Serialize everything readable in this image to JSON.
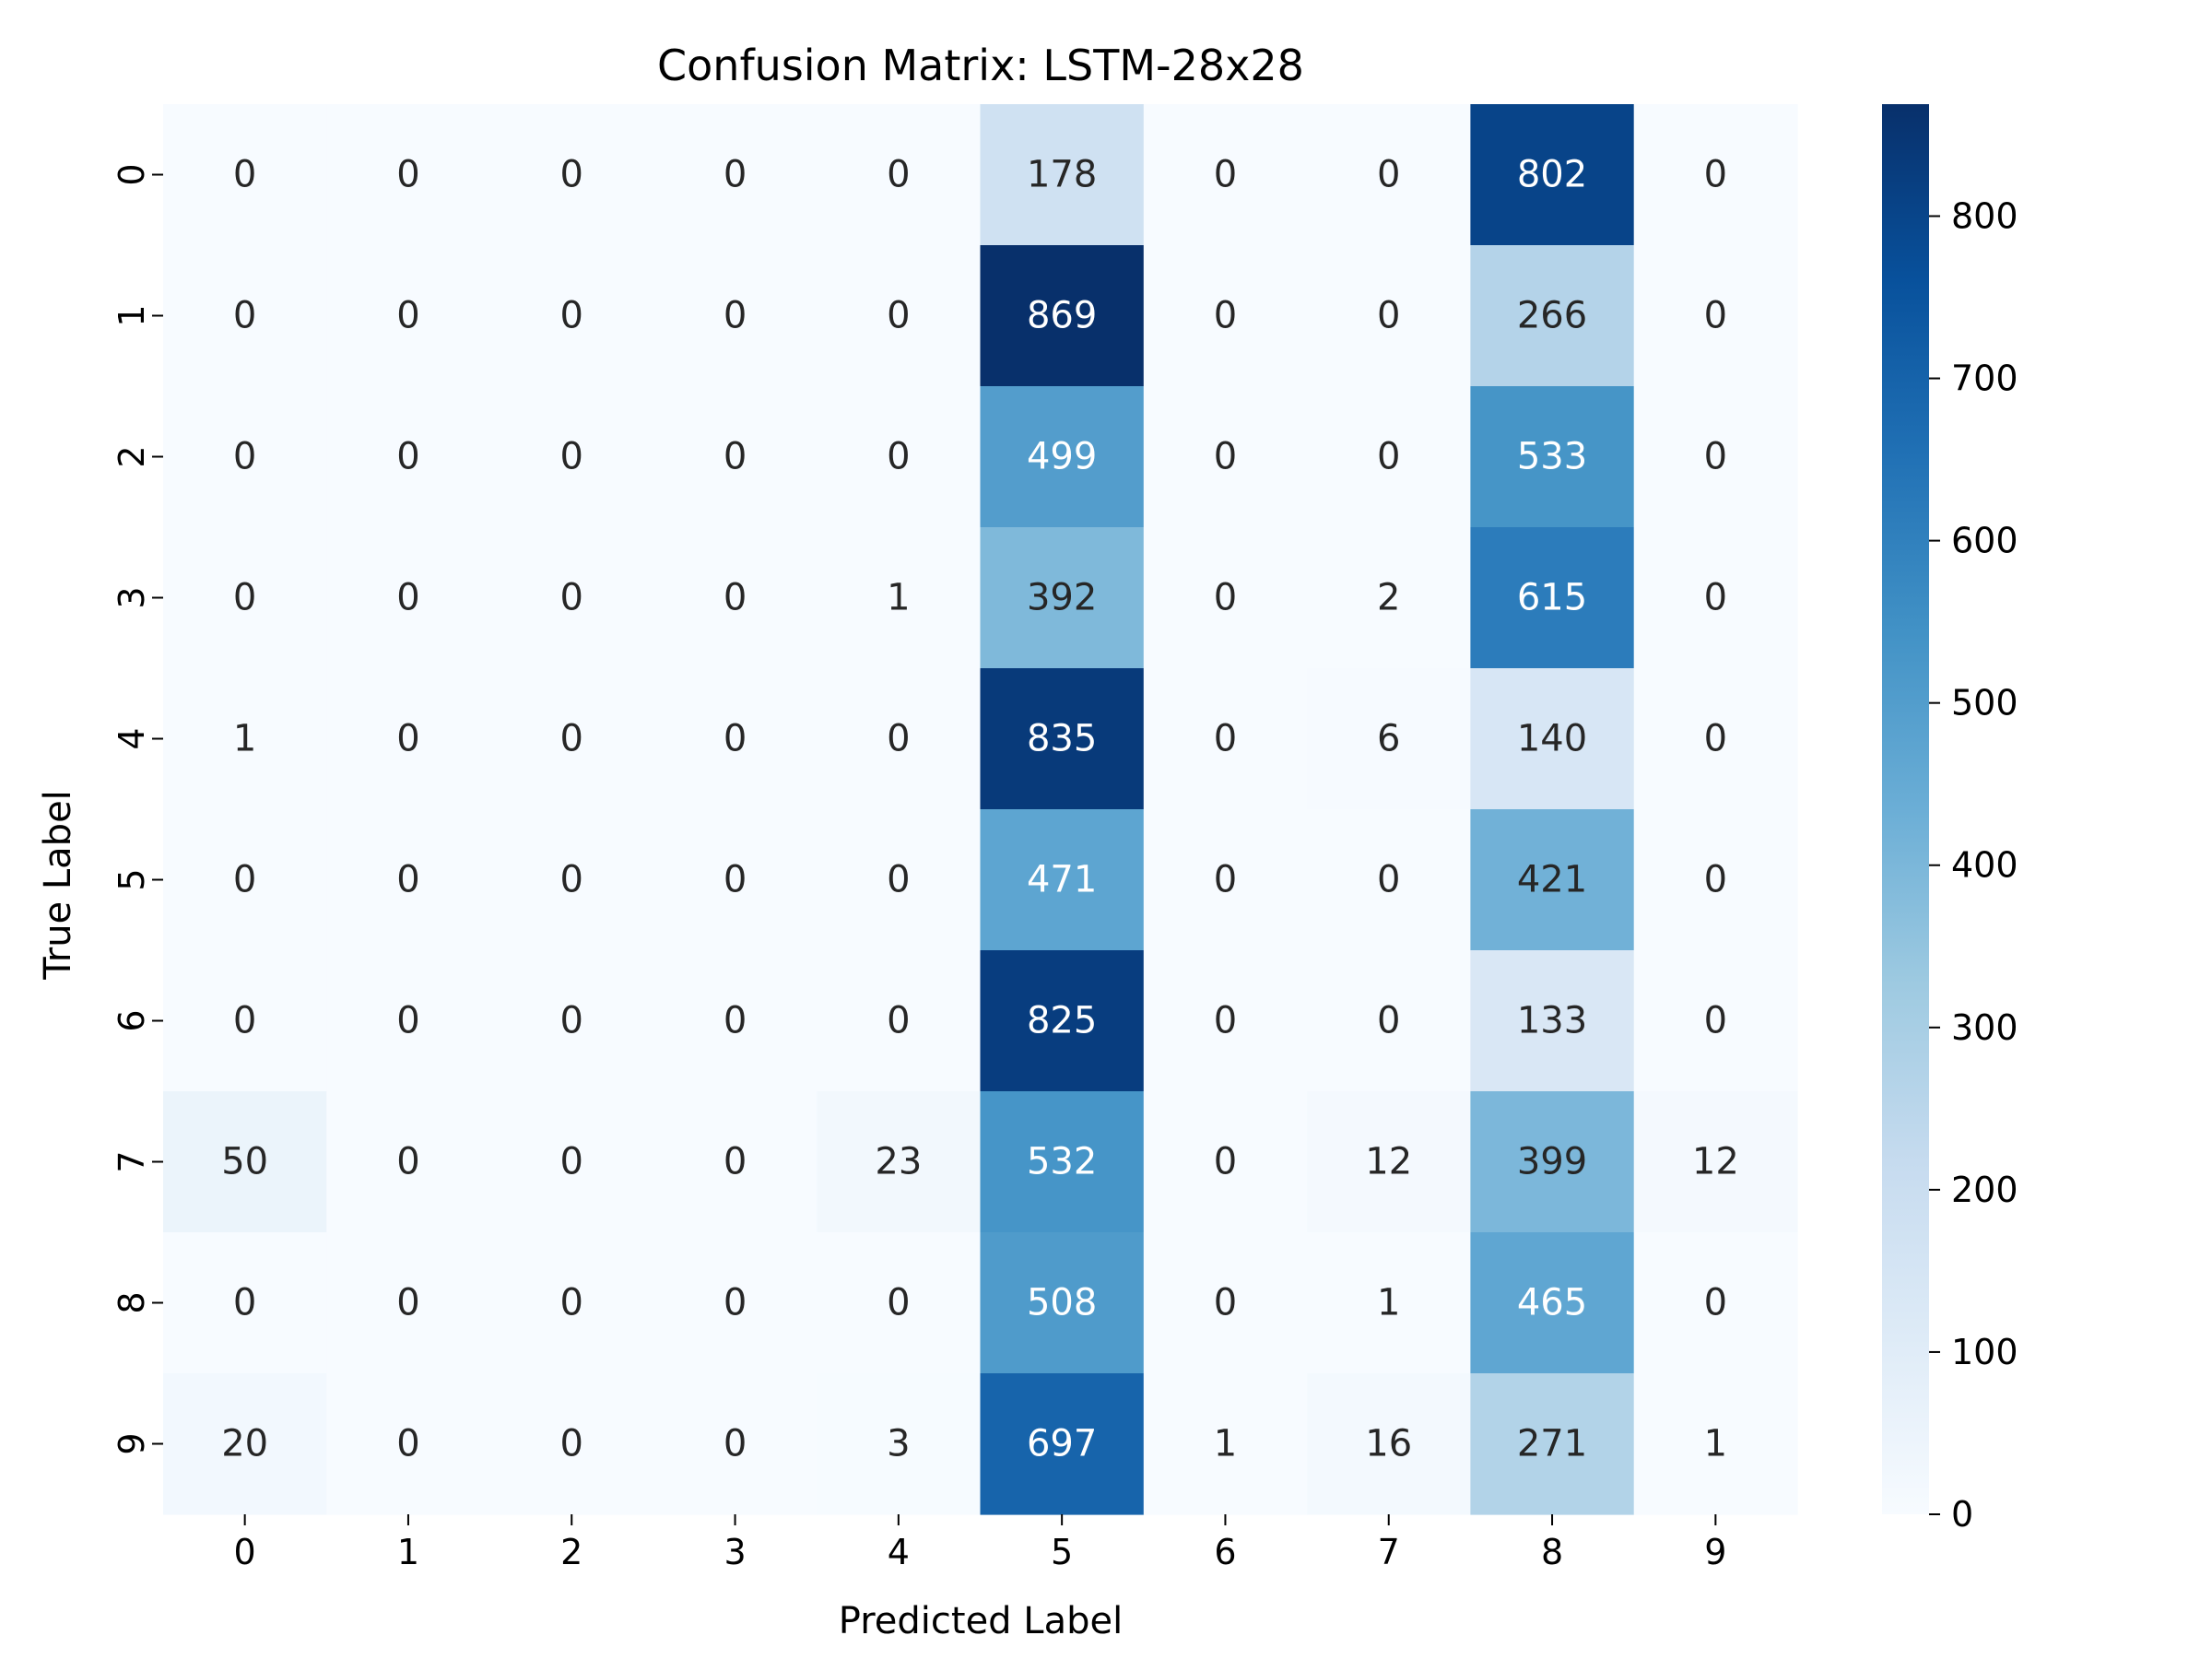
{
  "chart_data": {
    "type": "heatmap",
    "title": "Confusion Matrix: LSTM-28x28",
    "xlabel": "Predicted Label",
    "ylabel": "True Label",
    "x_categories": [
      "0",
      "1",
      "2",
      "3",
      "4",
      "5",
      "6",
      "7",
      "8",
      "9"
    ],
    "y_categories": [
      "0",
      "1",
      "2",
      "3",
      "4",
      "5",
      "6",
      "7",
      "8",
      "9"
    ],
    "values": [
      [
        0,
        0,
        0,
        0,
        0,
        178,
        0,
        0,
        802,
        0
      ],
      [
        0,
        0,
        0,
        0,
        0,
        869,
        0,
        0,
        266,
        0
      ],
      [
        0,
        0,
        0,
        0,
        0,
        499,
        0,
        0,
        533,
        0
      ],
      [
        0,
        0,
        0,
        0,
        1,
        392,
        0,
        2,
        615,
        0
      ],
      [
        1,
        0,
        0,
        0,
        0,
        835,
        0,
        6,
        140,
        0
      ],
      [
        0,
        0,
        0,
        0,
        0,
        471,
        0,
        0,
        421,
        0
      ],
      [
        0,
        0,
        0,
        0,
        0,
        825,
        0,
        0,
        133,
        0
      ],
      [
        50,
        0,
        0,
        0,
        23,
        532,
        0,
        12,
        399,
        12
      ],
      [
        0,
        0,
        0,
        0,
        0,
        508,
        0,
        1,
        465,
        0
      ],
      [
        20,
        0,
        0,
        0,
        3,
        697,
        1,
        16,
        271,
        1
      ]
    ],
    "colormap": "Blues",
    "colorbar": {
      "min": 0,
      "max": 869,
      "ticks": [
        0,
        100,
        200,
        300,
        400,
        500,
        600,
        700,
        800
      ]
    },
    "grid": false
  }
}
